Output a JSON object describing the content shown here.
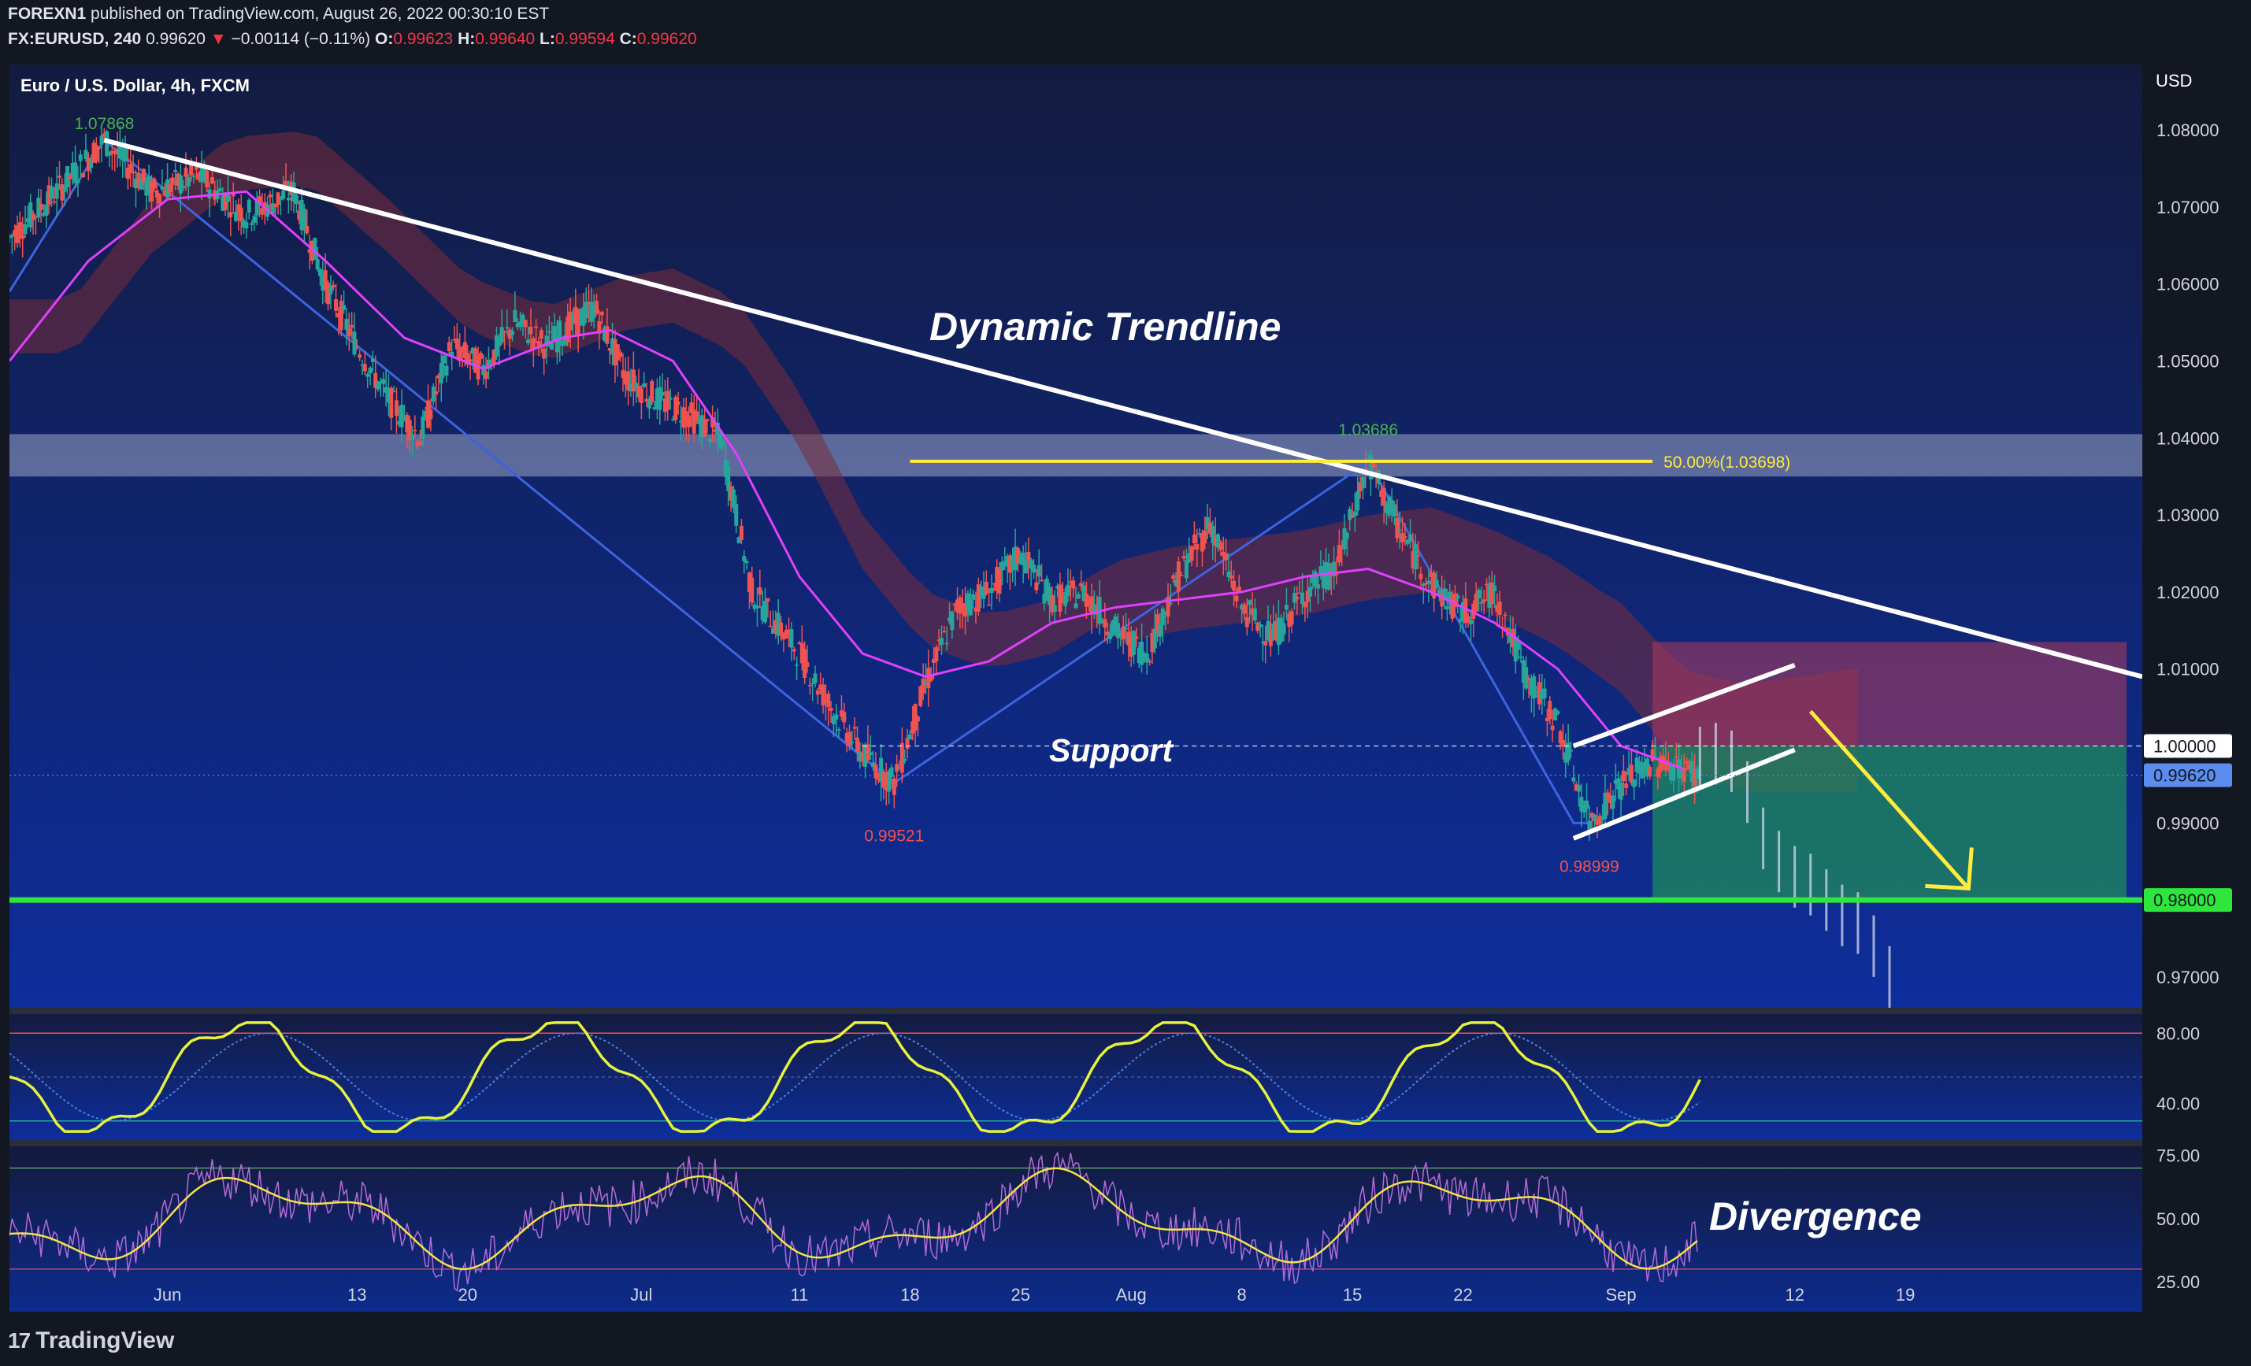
{
  "header": {
    "line1_author": "FOREXN1",
    "line1_text": "published on TradingView.com, August 26, 2022 00:30:10 EST",
    "symbol": "FX:EURUSD, 240",
    "price": "0.99620",
    "change": "−0.00114 (−0.11%)",
    "o_label": "O:",
    "o": "0.99623",
    "h_label": "H:",
    "h": "0.99640",
    "l_label": "L:",
    "l": "0.99594",
    "c_label": "C:",
    "c": "0.99620"
  },
  "pane_title": "Euro / U.S. Dollar, 4h, FXCM",
  "currency": "USD",
  "annotations": {
    "trendline": "Dynamic Trendline",
    "support": "Support",
    "divergence": "Divergence",
    "fib": "50.00%(1.03698)",
    "high1": "1.07868",
    "high2": "1.03686",
    "low1": "0.99521",
    "low2": "0.98999"
  },
  "price_labels": {
    "level_1": "1.00000",
    "current": "0.99620",
    "target": "0.98000"
  },
  "footer": {
    "brand": "TradingView"
  },
  "colors": {
    "bg_top": "#131b3f",
    "bg_bottom": "#0d2e9c",
    "up": "#26a69a",
    "down": "#ef5350",
    "ma": "#e040fb",
    "trend": "#ffffff",
    "fib": "#ffeb3b",
    "target": "#2ee63c",
    "stop_zone": "#a33b5f",
    "profit_zone": "#1f8a5c"
  },
  "chart_data": {
    "type": "candlestick",
    "title": "Euro / U.S. Dollar, 4h, FXCM",
    "ylabel": "USD",
    "ylim": [
      0.966,
      1.0885
    ],
    "y_ticks": [
      "1.08000",
      "1.07000",
      "1.06000",
      "1.05000",
      "1.04000",
      "1.03000",
      "1.02000",
      "1.01000",
      "0.99000",
      "0.97000"
    ],
    "x_ticks": [
      "Jun",
      "13",
      "20",
      "Jul",
      "11",
      "18",
      "25",
      "Aug",
      "8",
      "15",
      "22",
      "Sep",
      "12",
      "19"
    ],
    "x_tick_days": [
      0,
      12,
      19,
      30,
      40,
      47,
      54,
      61,
      68,
      75,
      82,
      92,
      103,
      110
    ],
    "x_range_days": [
      -10,
      125
    ],
    "price_path": [
      [
        -10,
        1.066
      ],
      [
        -7,
        1.072
      ],
      [
        -4,
        1.07868
      ],
      [
        -1,
        1.072
      ],
      [
        2,
        1.074
      ],
      [
        5,
        1.069
      ],
      [
        8,
        1.072
      ],
      [
        10,
        1.06
      ],
      [
        12,
        1.052
      ],
      [
        14,
        1.045
      ],
      [
        16,
        1.04
      ],
      [
        18,
        1.052
      ],
      [
        20,
        1.049
      ],
      [
        22,
        1.055
      ],
      [
        24,
        1.052
      ],
      [
        27,
        1.057
      ],
      [
        29,
        1.048
      ],
      [
        31,
        1.045
      ],
      [
        33,
        1.043
      ],
      [
        35,
        1.04
      ],
      [
        37,
        1.02
      ],
      [
        40,
        1.012
      ],
      [
        42,
        1.005
      ],
      [
        44,
        0.999
      ],
      [
        46,
        0.99521
      ],
      [
        48,
        1.008
      ],
      [
        50,
        1.018
      ],
      [
        52,
        1.02
      ],
      [
        54,
        1.025
      ],
      [
        56,
        1.019
      ],
      [
        58,
        1.02
      ],
      [
        60,
        1.015
      ],
      [
        62,
        1.012
      ],
      [
        64,
        1.022
      ],
      [
        66,
        1.029
      ],
      [
        68,
        1.018
      ],
      [
        70,
        1.014
      ],
      [
        72,
        1.02
      ],
      [
        74,
        1.023
      ],
      [
        76,
        1.03686
      ],
      [
        78,
        1.028
      ],
      [
        80,
        1.021
      ],
      [
        82,
        1.017
      ],
      [
        84,
        1.02
      ],
      [
        86,
        1.009
      ],
      [
        88,
        1.003
      ],
      [
        90,
        0.98999
      ],
      [
        92,
        0.995
      ],
      [
        94,
        0.998
      ],
      [
        96,
        0.997
      ],
      [
        97,
        0.9962
      ]
    ],
    "ma_path": [
      [
        -10,
        1.05
      ],
      [
        -5,
        1.063
      ],
      [
        0,
        1.071
      ],
      [
        5,
        1.072
      ],
      [
        10,
        1.063
      ],
      [
        15,
        1.053
      ],
      [
        20,
        1.049
      ],
      [
        25,
        1.053
      ],
      [
        28,
        1.054
      ],
      [
        32,
        1.05
      ],
      [
        36,
        1.038
      ],
      [
        40,
        1.022
      ],
      [
        44,
        1.012
      ],
      [
        48,
        1.009
      ],
      [
        52,
        1.011
      ],
      [
        56,
        1.016
      ],
      [
        60,
        1.018
      ],
      [
        64,
        1.019
      ],
      [
        68,
        1.02
      ],
      [
        72,
        1.022
      ],
      [
        76,
        1.023
      ],
      [
        80,
        1.02
      ],
      [
        84,
        1.016
      ],
      [
        88,
        1.01
      ],
      [
        92,
        1.0
      ],
      [
        96,
        0.997
      ]
    ],
    "projection": [
      [
        97,
        0.9985
      ],
      [
        98,
        0.999
      ],
      [
        99,
        0.998
      ],
      [
        100,
        0.994
      ],
      [
        101,
        0.988
      ],
      [
        102,
        0.985
      ],
      [
        103,
        0.983
      ],
      [
        104,
        0.982
      ],
      [
        105,
        0.98
      ],
      [
        106,
        0.978
      ],
      [
        107,
        0.977
      ],
      [
        108,
        0.974
      ],
      [
        109,
        0.97
      ]
    ],
    "levels": {
      "support": 1.0,
      "target": 0.98,
      "fib_50": 1.03698,
      "current": 0.9962
    },
    "trendline": [
      [
        -4,
        1.07868
      ],
      [
        125,
        1.009
      ]
    ],
    "zigzag": [
      [
        -10,
        1.059
      ],
      [
        -4,
        1.07868
      ],
      [
        46,
        0.99521
      ],
      [
        76,
        1.03686
      ],
      [
        89,
        0.99
      ],
      [
        90,
        0.98999
      ]
    ],
    "channel": {
      "upper": [
        [
          89,
          1.0
        ],
        [
          103,
          1.0105
        ]
      ],
      "lower": [
        [
          89,
          0.988
        ],
        [
          103,
          0.9995
        ]
      ]
    },
    "resistance_zone": [
      1.035,
      1.0405
    ],
    "trade_box": {
      "x": [
        94,
        124
      ],
      "entry": 1.0,
      "stop": 1.0135,
      "target": 0.98
    },
    "arrow": [
      [
        104,
        1.0045
      ],
      [
        114,
        0.9815
      ]
    ],
    "oscillator_1": {
      "ylim": [
        20,
        90
      ],
      "ticks": [
        "80.00",
        "40.00"
      ],
      "bands": [
        80,
        30
      ]
    },
    "oscillator_2": {
      "ylim": [
        15,
        78
      ],
      "ticks": [
        "75.00",
        "50.00",
        "25.00"
      ],
      "bands": [
        70,
        30
      ]
    }
  }
}
